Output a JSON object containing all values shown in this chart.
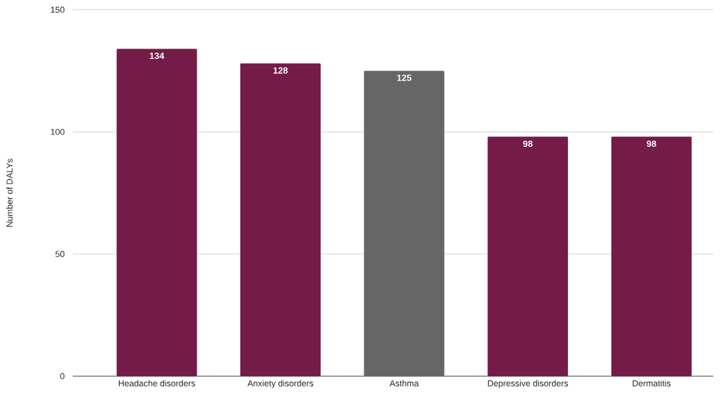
{
  "chart_data": {
    "type": "bar",
    "ylabel": "Number of DALYs",
    "categories": [
      "Headache disorders",
      "Anxiety disorders",
      "Asthma",
      "Depressive disorders",
      "Dermatitis"
    ],
    "values": [
      134,
      128,
      125,
      98,
      98
    ],
    "colors": [
      "#741b47",
      "#741b47",
      "#666666",
      "#741b47",
      "#741b47"
    ],
    "ylim": [
      0,
      150
    ],
    "yticks": [
      0,
      50,
      100,
      150
    ],
    "grid": "y",
    "data_labels": true
  }
}
